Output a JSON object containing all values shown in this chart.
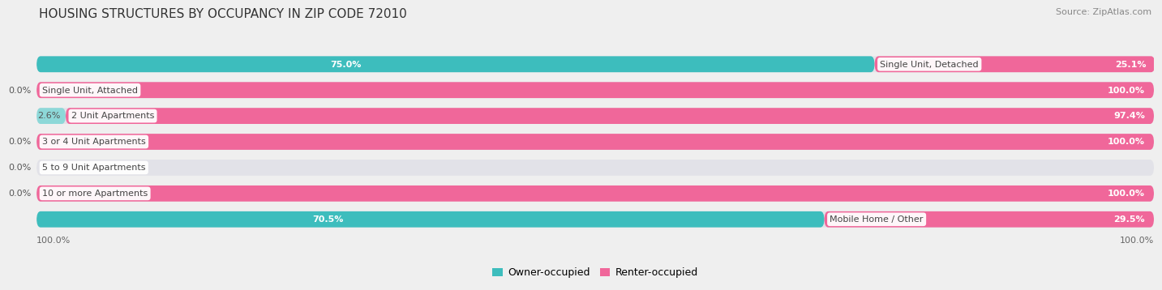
{
  "title": "HOUSING STRUCTURES BY OCCUPANCY IN ZIP CODE 72010",
  "source": "Source: ZipAtlas.com",
  "categories": [
    "Single Unit, Detached",
    "Single Unit, Attached",
    "2 Unit Apartments",
    "3 or 4 Unit Apartments",
    "5 to 9 Unit Apartments",
    "10 or more Apartments",
    "Mobile Home / Other"
  ],
  "owner_pct": [
    75.0,
    0.0,
    2.6,
    0.0,
    0.0,
    0.0,
    70.5
  ],
  "renter_pct": [
    25.1,
    100.0,
    97.4,
    100.0,
    0.0,
    100.0,
    29.5
  ],
  "owner_color": "#3DBDBD",
  "owner_color_small": "#8DD8D8",
  "renter_color": "#F0679A",
  "renter_color_small": "#F5A0C0",
  "bg_color": "#EFEFEF",
  "bar_bg_color": "#E2E2E8",
  "title_fontsize": 11,
  "source_fontsize": 8,
  "label_fontsize": 8,
  "pct_fontsize": 8,
  "bar_height": 0.62,
  "legend_labels": [
    "Owner-occupied",
    "Renter-occupied"
  ],
  "axis_label_left": "100.0%",
  "axis_label_right": "100.0%"
}
